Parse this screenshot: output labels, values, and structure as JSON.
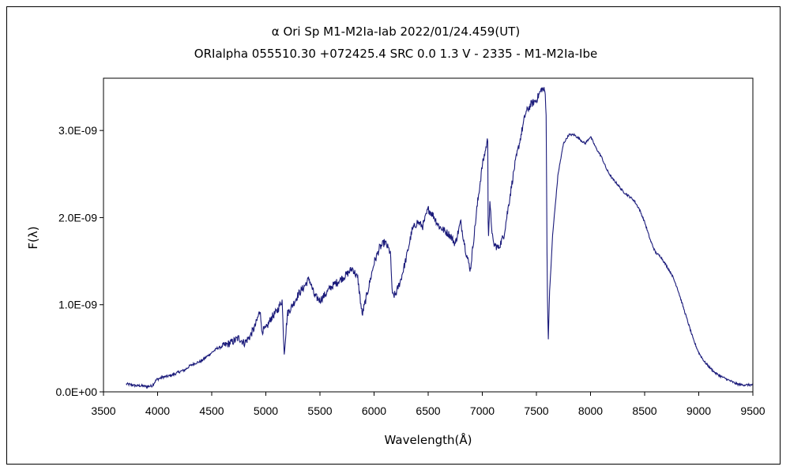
{
  "chart_data": {
    "type": "line",
    "title": "α Ori    Sp M1-M2Ia-Iab   2022/01/24.459(UT)",
    "subtitle": "ORIalpha 055510.30 +072425.4 SRC 0.0 1.3 V - 2335 - M1-M2Ia-Ibe",
    "xlabel": "Wavelength(Å)",
    "ylabel": "F(λ)",
    "xlim": [
      3500,
      9500
    ],
    "ylim": [
      0,
      3.6e-09
    ],
    "x_ticks": [
      3500,
      4000,
      4500,
      5000,
      5500,
      6000,
      6500,
      7000,
      7500,
      8000,
      8500,
      9000,
      9500
    ],
    "x_tick_labels": [
      "3500",
      "4000",
      "4500",
      "5000",
      "5500",
      "6000",
      "6500",
      "7000",
      "7500",
      "8000",
      "8500",
      "9000",
      "9500"
    ],
    "y_ticks": [
      0,
      1e-09,
      2e-09,
      3e-09
    ],
    "y_tick_labels": [
      "0.0E+00",
      "1.0E-09",
      "2.0E-09",
      "3.0E-09"
    ],
    "grid": false,
    "line_color": "#1a1a7a",
    "series": [
      {
        "name": "F(λ)",
        "x": [
          3710,
          3760,
          3800,
          3850,
          3900,
          3950,
          3990,
          4050,
          4100,
          4150,
          4200,
          4250,
          4300,
          4350,
          4400,
          4450,
          4500,
          4550,
          4600,
          4650,
          4700,
          4750,
          4800,
          4850,
          4900,
          4950,
          4960,
          5000,
          5050,
          5100,
          5150,
          5170,
          5200,
          5250,
          5300,
          5350,
          5400,
          5450,
          5500,
          5550,
          5600,
          5650,
          5700,
          5750,
          5800,
          5850,
          5890,
          5950,
          6000,
          6050,
          6100,
          6150,
          6170,
          6200,
          6250,
          6300,
          6350,
          6400,
          6450,
          6500,
          6550,
          6600,
          6650,
          6700,
          6750,
          6800,
          6850,
          6890,
          6950,
          7000,
          7050,
          7055,
          7070,
          7100,
          7150,
          7200,
          7250,
          7300,
          7350,
          7400,
          7450,
          7500,
          7550,
          7580,
          7590,
          7600,
          7610,
          7620,
          7650,
          7700,
          7750,
          7800,
          7850,
          7900,
          7950,
          8000,
          8050,
          8100,
          8150,
          8200,
          8250,
          8300,
          8350,
          8400,
          8450,
          8500,
          8550,
          8600,
          8650,
          8700,
          8750,
          8800,
          8850,
          8900,
          8950,
          9000,
          9050,
          9100,
          9150,
          9200,
          9250,
          9300,
          9350,
          9400,
          9450,
          9500
        ],
        "y": [
          9e-11,
          8e-11,
          7e-11,
          7e-11,
          6e-11,
          7e-11,
          1.4e-10,
          1.7e-10,
          1.8e-10,
          2e-10,
          2.3e-10,
          2.5e-10,
          3e-10,
          3.3e-10,
          3.5e-10,
          4e-10,
          4.5e-10,
          5e-10,
          5.2e-10,
          5.5e-10,
          5.8e-10,
          6.2e-10,
          5.6e-10,
          6.3e-10,
          7.5e-10,
          9.5e-10,
          7e-10,
          7.2e-10,
          8.5e-10,
          9.2e-10,
          1.05e-09,
          4.5e-10,
          9e-10,
          1e-09,
          1.12e-09,
          1.2e-09,
          1.3e-09,
          1.1e-09,
          1.05e-09,
          1.12e-09,
          1.2e-09,
          1.25e-09,
          1.3e-09,
          1.35e-09,
          1.42e-09,
          1.3e-09,
          8.8e-10,
          1.2e-09,
          1.48e-09,
          1.65e-09,
          1.72e-09,
          1.6e-09,
          1.1e-09,
          1.12e-09,
          1.3e-09,
          1.55e-09,
          1.85e-09,
          1.95e-09,
          1.9e-09,
          2.1e-09,
          2.02e-09,
          1.9e-09,
          1.85e-09,
          1.8e-09,
          1.7e-09,
          1.95e-09,
          1.6e-09,
          1.4e-09,
          2.1e-09,
          2.6e-09,
          2.9e-09,
          1.75e-09,
          2.15e-09,
          1.7e-09,
          1.65e-09,
          1.8e-09,
          2.2e-09,
          2.6e-09,
          2.9e-09,
          3.2e-09,
          3.3e-09,
          3.35e-09,
          3.48e-09,
          3.45e-09,
          3.2e-09,
          1.2e-09,
          6e-10,
          1.1e-09,
          1.8e-09,
          2.5e-09,
          2.85e-09,
          2.95e-09,
          2.95e-09,
          2.9e-09,
          2.85e-09,
          2.93e-09,
          2.8e-09,
          2.7e-09,
          2.55e-09,
          2.45e-09,
          2.38e-09,
          2.3e-09,
          2.25e-09,
          2.2e-09,
          2.1e-09,
          1.95e-09,
          1.75e-09,
          1.6e-09,
          1.55e-09,
          1.45e-09,
          1.35e-09,
          1.2e-09,
          1e-09,
          8e-10,
          6e-10,
          4.5e-10,
          3.5e-10,
          2.8e-10,
          2.2e-10,
          1.8e-10,
          1.5e-10,
          1.2e-10,
          9e-11,
          8e-11,
          8e-11,
          8e-11
        ]
      }
    ]
  }
}
